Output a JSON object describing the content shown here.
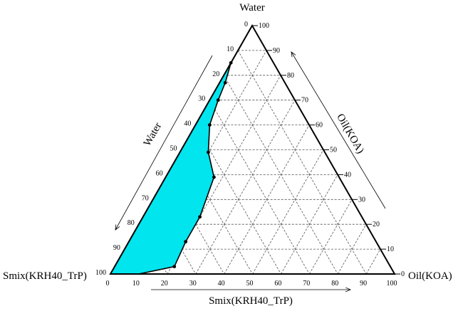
{
  "chart_data": {
    "type": "ternary",
    "vertex_labels": {
      "top": "Water",
      "left": "Smix(KRH40_TrP)",
      "right": "Oil(KOA)"
    },
    "axis_titles": {
      "left_edge": "Water",
      "right_edge": "Oil(KOA)",
      "bottom_edge": "Smix(KRH40_TrP)"
    },
    "left_edge_ticks": [
      "0",
      "10",
      "20",
      "30",
      "40",
      "50",
      "60",
      "70",
      "80",
      "90",
      "100"
    ],
    "right_edge_ticks": [
      "100",
      "90",
      "80",
      "70",
      "60",
      "50",
      "40",
      "30",
      "20",
      "10",
      "0"
    ],
    "bottom_edge_ticks": [
      "0",
      "10",
      "20",
      "30",
      "40",
      "50",
      "60",
      "70",
      "80",
      "90",
      "100"
    ],
    "grid": true,
    "grid_step": 10,
    "region": {
      "fill": "#00e5ee",
      "stroke": "#000000",
      "points": [
        {
          "water": 100,
          "oil": 0
        },
        {
          "water": 85,
          "oil": 0
        },
        {
          "water": 77,
          "oil": 2
        },
        {
          "water": 70,
          "oil": 3
        },
        {
          "water": 60,
          "oil": 5
        },
        {
          "water": 49,
          "oil": 10
        },
        {
          "water": 39,
          "oil": 17
        },
        {
          "water": 23,
          "oil": 20
        },
        {
          "water": 13,
          "oil": 20
        },
        {
          "water": 3,
          "oil": 21
        },
        {
          "water": 0,
          "oil": 10
        },
        {
          "water": 0,
          "oil": 0
        }
      ],
      "marked_points": [
        {
          "water": 85,
          "oil": 0
        },
        {
          "water": 77,
          "oil": 2
        },
        {
          "water": 70,
          "oil": 3
        },
        {
          "water": 60,
          "oil": 5
        },
        {
          "water": 49,
          "oil": 10
        },
        {
          "water": 39,
          "oil": 17
        },
        {
          "water": 23,
          "oil": 20
        },
        {
          "water": 13,
          "oil": 20
        },
        {
          "water": 3,
          "oil": 21
        }
      ]
    }
  }
}
